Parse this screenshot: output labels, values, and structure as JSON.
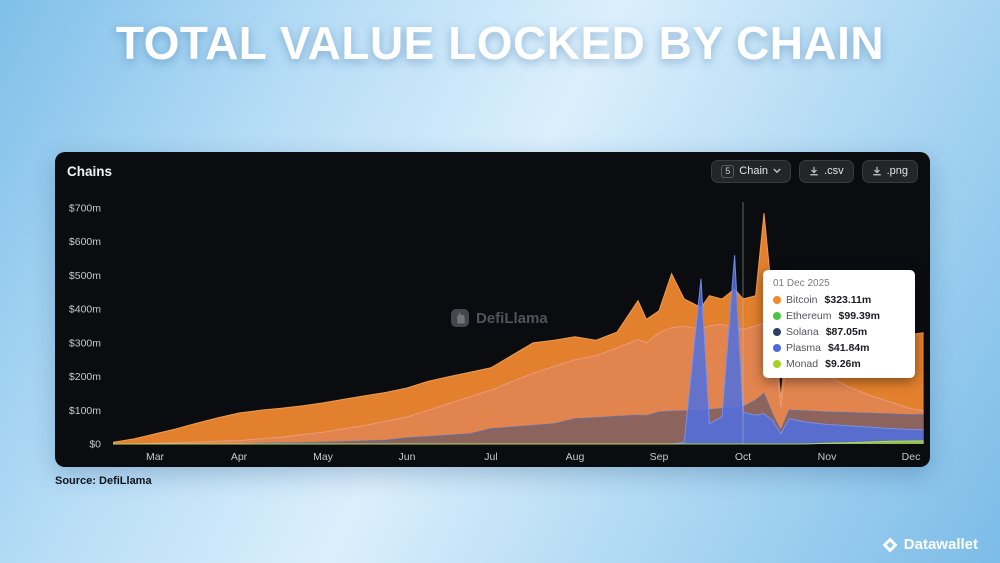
{
  "page": {
    "title": "TOTAL VALUE LOCKED BY CHAIN",
    "source": "Source: DefiLlama",
    "brand": "Datawallet"
  },
  "panel": {
    "heading": "Chains",
    "chain_count": "5",
    "chain_label": "Chain",
    "csv_label": ".csv",
    "png_label": ".png",
    "watermark": "DefiLlama"
  },
  "tooltip": {
    "date": "01 Dec 2025",
    "items": [
      {
        "name": "Bitcoin",
        "value": "$323.11m",
        "color": "#f08a2d"
      },
      {
        "name": "Ethereum",
        "value": "$99.39m",
        "color": "#46c93f"
      },
      {
        "name": "Solana",
        "value": "$87.05m",
        "color": "#2e3f66"
      },
      {
        "name": "Plasma",
        "value": "$41.84m",
        "color": "#4a6be0"
      },
      {
        "name": "Monad",
        "value": "$9.26m",
        "color": "#a4d422"
      }
    ]
  },
  "chart_data": {
    "type": "area",
    "stacked": false,
    "title": "Total Value Locked by Chain",
    "unit": "$m USD",
    "x_axis_labels": [
      "Mar",
      "Apr",
      "May",
      "Jun",
      "Jul",
      "Aug",
      "Sep",
      "Oct",
      "Nov",
      "Dec"
    ],
    "y_ticks": [
      0,
      100,
      200,
      300,
      400,
      500,
      600,
      700
    ],
    "y_tick_labels": [
      "$0",
      "$100m",
      "$200m",
      "$300m",
      "$400m",
      "$500m",
      "$600m",
      "$700m"
    ],
    "ylim": [
      0,
      700
    ],
    "hover_month": 7,
    "x_months": [
      -0.5,
      -0.25,
      0,
      0.25,
      0.5,
      0.75,
      1,
      1.25,
      1.5,
      1.75,
      2,
      2.25,
      2.5,
      2.75,
      3,
      3.25,
      3.5,
      3.75,
      4,
      4.25,
      4.5,
      4.75,
      5,
      5.25,
      5.5,
      5.75,
      5.85,
      6,
      6.15,
      6.3,
      6.5,
      6.6,
      6.75,
      6.9,
      7,
      7.15,
      7.25,
      7.35,
      7.45,
      7.55,
      7.75,
      8,
      8.25,
      8.5,
      8.75,
      9,
      9.15
    ],
    "series": [
      {
        "name": "Bitcoin",
        "color": "#ef872f",
        "stroke": "#f7a456",
        "fill_opacity": 0.95,
        "values": [
          5,
          15,
          30,
          45,
          62,
          78,
          92,
          100,
          106,
          113,
          122,
          133,
          143,
          153,
          166,
          186,
          200,
          213,
          226,
          263,
          300,
          308,
          318,
          308,
          332,
          425,
          370,
          395,
          505,
          430,
          405,
          440,
          430,
          460,
          430,
          440,
          685,
          430,
          135,
          395,
          375,
          358,
          348,
          338,
          332,
          325,
          330
        ]
      },
      {
        "name": "Ethereum",
        "color": "#e2876a",
        "stroke": "#eb9d82",
        "fill_opacity": 0.55,
        "values": [
          0,
          0,
          2,
          4,
          6,
          8,
          10,
          15,
          20,
          28,
          35,
          45,
          55,
          68,
          80,
          100,
          120,
          140,
          160,
          185,
          210,
          230,
          250,
          262,
          285,
          310,
          300,
          330,
          345,
          350,
          340,
          350,
          355,
          345,
          340,
          350,
          360,
          330,
          110,
          300,
          255,
          205,
          170,
          145,
          125,
          105,
          99
        ]
      },
      {
        "name": "Solana",
        "color": "#35426b",
        "stroke": "#5f6fa3",
        "fill_opacity": 0.5,
        "values": [
          0,
          0,
          0,
          0,
          0,
          0,
          0,
          2,
          3,
          4,
          5,
          7,
          9,
          11,
          18,
          22,
          26,
          30,
          45,
          50,
          55,
          60,
          75,
          78,
          82,
          85,
          84,
          95,
          97,
          98,
          100,
          102,
          105,
          108,
          110,
          130,
          150,
          90,
          40,
          100,
          98,
          95,
          93,
          91,
          89,
          87,
          87
        ]
      },
      {
        "name": "Plasma",
        "color": "#4f6fe0",
        "stroke": "#7b93f0",
        "fill_opacity": 0.85,
        "values": [
          0,
          0,
          0,
          0,
          0,
          0,
          0,
          0,
          0,
          0,
          0,
          0,
          0,
          0,
          0,
          0,
          0,
          0,
          0,
          0,
          0,
          0,
          0,
          0,
          0,
          0,
          0,
          0,
          0,
          5,
          490,
          60,
          80,
          560,
          95,
          85,
          90,
          70,
          30,
          75,
          65,
          58,
          54,
          50,
          46,
          43,
          42
        ]
      },
      {
        "name": "Monad",
        "color": "#9ccd3a",
        "stroke": "#b9e158",
        "fill_opacity": 0.85,
        "values": [
          0,
          0,
          0,
          0,
          0,
          0,
          0,
          0,
          0,
          0,
          0,
          0,
          0,
          0,
          0,
          0,
          0,
          0,
          0,
          0,
          0,
          0,
          0,
          0,
          0,
          0,
          0,
          0,
          0,
          0,
          0,
          0,
          0,
          0,
          0,
          0,
          0,
          0,
          0,
          0,
          0,
          2,
          4,
          6,
          8,
          9,
          9.3
        ]
      }
    ]
  }
}
